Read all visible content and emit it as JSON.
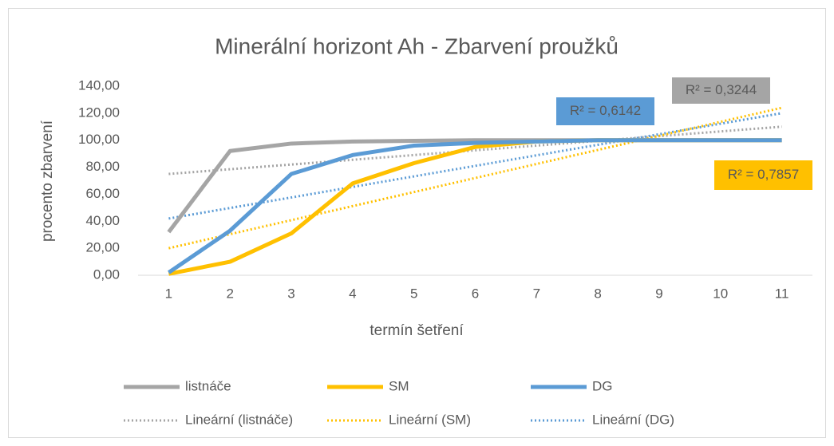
{
  "chart_data": {
    "type": "line",
    "title": "Minerální horizont Ah - Zbarvení proužků",
    "x_label": "termín šetření",
    "y_label": "procento zbarvení",
    "categories": [
      "1",
      "2",
      "3",
      "4",
      "5",
      "6",
      "7",
      "8",
      "9",
      "10",
      "11"
    ],
    "ylim": [
      0,
      140
    ],
    "yticks": [
      {
        "value": 0,
        "label": "0,00"
      },
      {
        "value": 20,
        "label": "20,00"
      },
      {
        "value": 40,
        "label": "40,00"
      },
      {
        "value": 60,
        "label": "60,00"
      },
      {
        "value": 80,
        "label": "80,00"
      },
      {
        "value": 100,
        "label": "100,00"
      },
      {
        "value": 120,
        "label": "120,00"
      },
      {
        "value": 140,
        "label": "140,00"
      }
    ],
    "grid": false,
    "legend": "bottom",
    "series": [
      {
        "name": "listnáče",
        "color": "#a5a5a5",
        "dashed": false,
        "values": [
          32,
          92,
          97.5,
          99,
          99.5,
          100,
          100,
          100,
          100,
          100,
          100
        ]
      },
      {
        "name": "SM",
        "color": "#ffc000",
        "dashed": false,
        "values": [
          1,
          10,
          31,
          68,
          83,
          95,
          99,
          100,
          100,
          100,
          100
        ]
      },
      {
        "name": "DG",
        "color": "#5b9bd5",
        "dashed": false,
        "values": [
          2,
          33,
          75,
          89,
          96,
          98,
          99,
          100,
          100,
          100,
          100
        ]
      },
      {
        "name": "Lineární (listnáče)",
        "color": "#a5a5a5",
        "dashed": true,
        "values": [
          75,
          78.5,
          82,
          85.5,
          89,
          92.5,
          96,
          99.5,
          103,
          106.5,
          110
        ]
      },
      {
        "name": "Lineární (SM)",
        "color": "#ffc000",
        "dashed": true,
        "values": [
          20,
          30.4,
          40.8,
          51.2,
          61.6,
          72,
          82.4,
          92.8,
          103.2,
          113.6,
          124
        ]
      },
      {
        "name": "Lineární (DG)",
        "color": "#5b9bd5",
        "dashed": true,
        "values": [
          42,
          49.8,
          57.6,
          65.4,
          73.2,
          81,
          88.8,
          96.6,
          104.4,
          112.2,
          120
        ]
      }
    ],
    "annotations": [
      {
        "text": "R² = 0,6142",
        "color": "#5b9bd5"
      },
      {
        "text": "R² = 0,3244",
        "color": "#a5a5a5"
      },
      {
        "text": "R² = 0,7857",
        "color": "#ffc000"
      }
    ]
  }
}
